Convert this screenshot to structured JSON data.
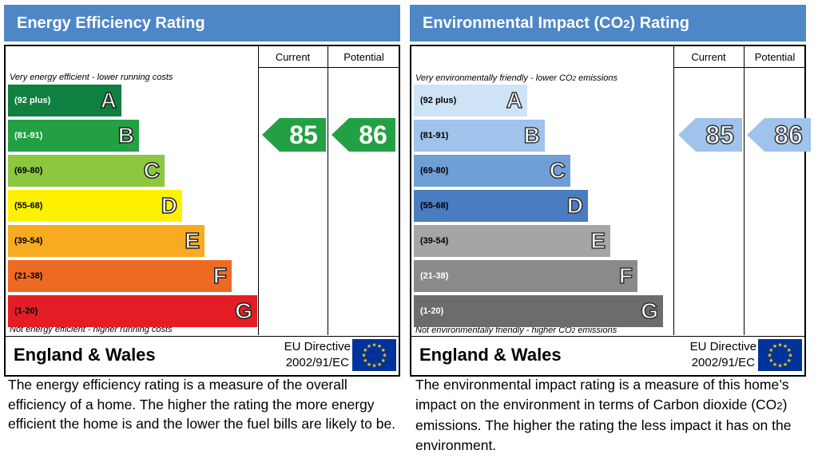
{
  "chart_data": [
    {
      "type": "bar",
      "title": "Energy Efficiency Rating",
      "columns": [
        "Current",
        "Potential"
      ],
      "top_label": "Very energy efficient - lower running costs",
      "bottom_label": "Not energy efficient - higher running costs",
      "bands": [
        {
          "letter": "A",
          "range": "(92 plus)",
          "color": "#0f8040",
          "text_color": "#ffffff"
        },
        {
          "letter": "B",
          "range": "(81-91)",
          "color": "#23a043",
          "text_color": "#ffffff"
        },
        {
          "letter": "C",
          "range": "(69-80)",
          "color": "#8dc63f",
          "text_color": "#000000"
        },
        {
          "letter": "D",
          "range": "(55-68)",
          "color": "#fff200",
          "text_color": "#000000"
        },
        {
          "letter": "E",
          "range": "(39-54)",
          "color": "#f7ab20",
          "text_color": "#000000"
        },
        {
          "letter": "F",
          "range": "(21-38)",
          "color": "#ee6a23",
          "text_color": "#000000"
        },
        {
          "letter": "G",
          "range": "(1-20)",
          "color": "#e31d23",
          "text_color": "#000000"
        }
      ],
      "current": {
        "value": "85",
        "band": "B"
      },
      "potential": {
        "value": "86",
        "band": "B"
      },
      "arrow_color": "#23a043",
      "region": "England & Wales",
      "directive_line1": "EU Directive",
      "directive_line2": "2002/91/EC",
      "description": "The energy efficiency rating is a measure of the overall efficiency of a home. The higher the rating the more energy efficient the home is and the lower the fuel bills are likely to be."
    },
    {
      "type": "bar",
      "title": "Environmental Impact (CO2) Rating",
      "columns": [
        "Current",
        "Potential"
      ],
      "top_label": "Very environmentally friendly - lower CO2 emissions",
      "bottom_label": "Not environmentally friendly - higher CO2 emissions",
      "bands": [
        {
          "letter": "A",
          "range": "(92 plus)",
          "color": "#cfe3f6",
          "text_color": "#000000"
        },
        {
          "letter": "B",
          "range": "(81-91)",
          "color": "#9fc3ea",
          "text_color": "#000000"
        },
        {
          "letter": "C",
          "range": "(69-80)",
          "color": "#6f9fd7",
          "text_color": "#000000"
        },
        {
          "letter": "D",
          "range": "(55-68)",
          "color": "#4a7cc2",
          "text_color": "#000000"
        },
        {
          "letter": "E",
          "range": "(39-54)",
          "color": "#a5a5a5",
          "text_color": "#000000"
        },
        {
          "letter": "F",
          "range": "(21-38)",
          "color": "#8a8a8a",
          "text_color": "#ffffff"
        },
        {
          "letter": "G",
          "range": "(1-20)",
          "color": "#6c6c6c",
          "text_color": "#ffffff"
        }
      ],
      "current": {
        "value": "85",
        "band": "B"
      },
      "potential": {
        "value": "86",
        "band": "B"
      },
      "arrow_color": "#9fc3ea",
      "region": "England & Wales",
      "directive_line1": "EU Directive",
      "directive_line2": "2002/91/EC",
      "description": "The environmental impact rating is a measure of this home’s impact on the environment in terms of Carbon dioxide (CO2) emissions. The higher the rating the less impact it has on the environment."
    }
  ],
  "colors": {
    "title_bar": "#4f86c6",
    "eu_flag_blue": "#003399",
    "eu_flag_star": "#ffcc00"
  }
}
